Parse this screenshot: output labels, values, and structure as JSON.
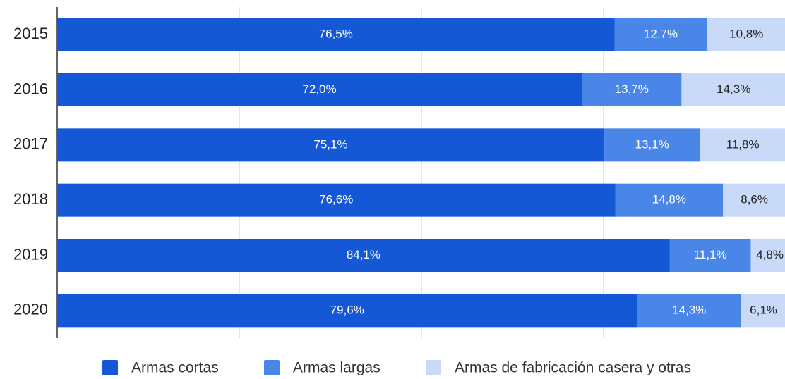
{
  "chart_data": {
    "type": "bar",
    "orientation": "horizontal",
    "stacked": true,
    "categories": [
      "2015",
      "2016",
      "2017",
      "2018",
      "2019",
      "2020"
    ],
    "series": [
      {
        "name": "Armas cortas",
        "color": "#1558d6",
        "values": [
          76.5,
          72.0,
          75.1,
          76.6,
          84.1,
          79.6
        ],
        "value_labels": [
          "76,5%",
          "72,0%",
          "75,1%",
          "76,6%",
          "84,1%",
          "79,6%"
        ]
      },
      {
        "name": "Armas largas",
        "color": "#4a86e8",
        "values": [
          12.7,
          13.7,
          13.1,
          14.8,
          11.1,
          14.3
        ],
        "value_labels": [
          "12,7%",
          "13,7%",
          "13,1%",
          "14,8%",
          "11,1%",
          "14,3%"
        ]
      },
      {
        "name": "Armas de fabricación casera y otras",
        "color": "#c9daf8",
        "values": [
          10.8,
          14.3,
          11.8,
          8.6,
          4.8,
          6.1
        ],
        "value_labels": [
          "10,8%",
          "14,3%",
          "11,8%",
          "8,6%",
          "4,8%",
          "6,1%"
        ]
      }
    ],
    "xlim": [
      0,
      100
    ],
    "xticks": [
      0,
      25,
      50,
      75,
      100
    ],
    "grid": true,
    "legend": "bottom"
  }
}
